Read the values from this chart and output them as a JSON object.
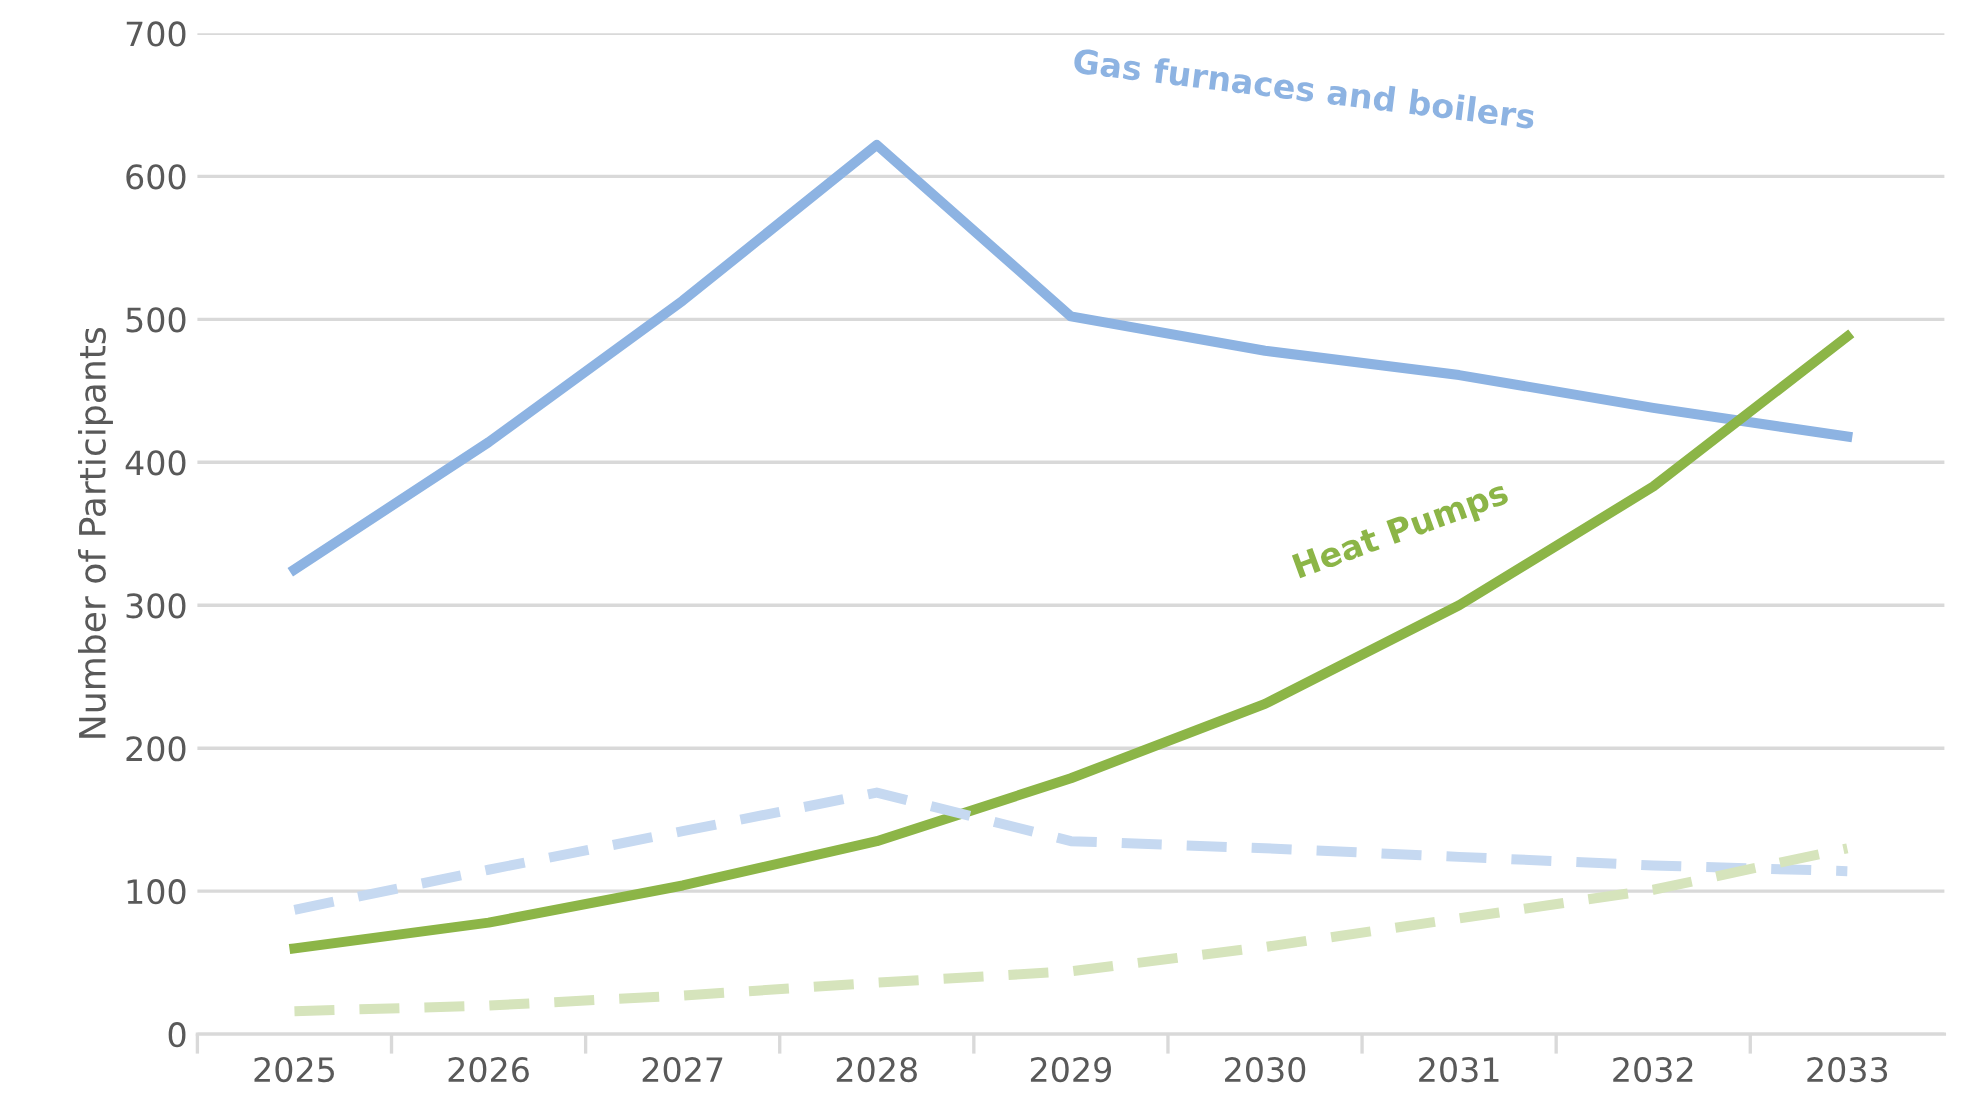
{
  "chart_data": {
    "type": "line",
    "ylabel": "Number of Participants",
    "categories": [
      "2025",
      "2026",
      "2027",
      "2028",
      "2029",
      "2030",
      "2031",
      "2032",
      "2033"
    ],
    "series": [
      {
        "name": "Gas furnaces and boilers",
        "color": "#8db3e2",
        "values": [
          325,
          414,
          513,
          622,
          502,
          478,
          461,
          438,
          418
        ]
      },
      {
        "name": "Heat Pumps",
        "color": "#8cb547",
        "values": [
          60,
          78,
          104,
          135,
          179,
          231,
          300,
          383,
          488
        ]
      },
      {
        "color": "#c6d9f1",
        "line_style": "dashed",
        "values": [
          87,
          115,
          142,
          169,
          135,
          130,
          124,
          118,
          114
        ]
      },
      {
        "color": "#d6e4bc",
        "line_style": "dashed",
        "values": [
          16,
          20,
          27,
          36,
          44,
          61,
          81,
          101,
          130
        ]
      }
    ],
    "ylim": [
      0,
      700
    ],
    "yticks": [
      0,
      100,
      200,
      300,
      400,
      500,
      600,
      700
    ],
    "grid": "y",
    "legend": false,
    "marker": "none",
    "line_style": "solid"
  }
}
